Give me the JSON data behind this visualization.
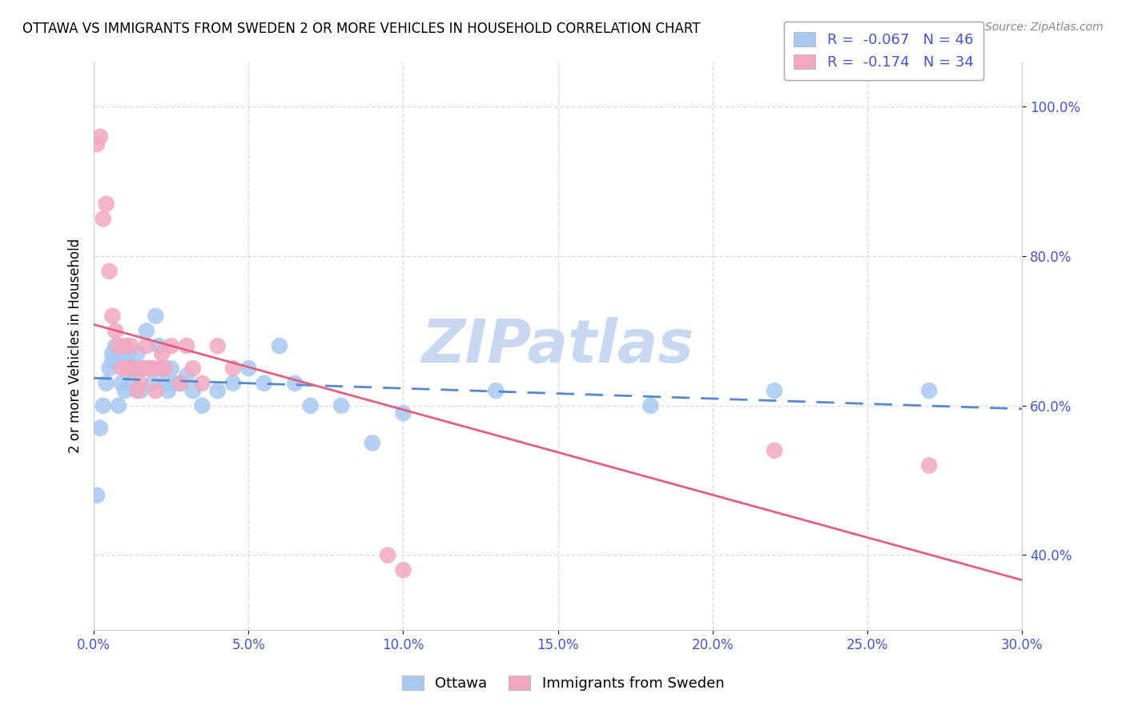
{
  "title": "OTTAWA VS IMMIGRANTS FROM SWEDEN 2 OR MORE VEHICLES IN HOUSEHOLD CORRELATION CHART",
  "source": "Source: ZipAtlas.com",
  "ylabel": "2 or more Vehicles in Household",
  "xlim": [
    0.0,
    0.3
  ],
  "ylim": [
    0.3,
    1.06
  ],
  "xticks": [
    0.0,
    0.05,
    0.1,
    0.15,
    0.2,
    0.25,
    0.3
  ],
  "yticks": [
    0.4,
    0.6,
    0.8,
    1.0
  ],
  "ytick_labels": [
    "40.0%",
    "60.0%",
    "80.0%",
    "100.0%"
  ],
  "xtick_labels": [
    "0.0%",
    "5.0%",
    "10.0%",
    "15.0%",
    "20.0%",
    "25.0%",
    "30.0%"
  ],
  "legend_R1": "R =  -0.067",
  "legend_N1": "N = 46",
  "legend_R2": "R =  -0.174",
  "legend_N2": "N = 34",
  "color_ottawa": "#a8c8f0",
  "color_sweden": "#f0a8c0",
  "color_line_ottawa": "#5588cc",
  "color_line_sweden": "#e06080",
  "color_grid": "#dddddd",
  "color_axis_text": "#4455cc",
  "watermark_text": "ZIPatlas",
  "watermark_color": "#c8d8f0",
  "ottawa_x": [
    0.001,
    0.002,
    0.003,
    0.004,
    0.005,
    0.006,
    0.006,
    0.007,
    0.008,
    0.009,
    0.01,
    0.01,
    0.011,
    0.012,
    0.013,
    0.014,
    0.015,
    0.016,
    0.017,
    0.018,
    0.019,
    0.02,
    0.021,
    0.022,
    0.023,
    0.024,
    0.025,
    0.026,
    0.028,
    0.03,
    0.032,
    0.035,
    0.04,
    0.045,
    0.05,
    0.055,
    0.06,
    0.065,
    0.07,
    0.08,
    0.09,
    0.1,
    0.13,
    0.18,
    0.22,
    0.27
  ],
  "ottawa_y": [
    0.48,
    0.57,
    0.6,
    0.63,
    0.65,
    0.66,
    0.67,
    0.68,
    0.6,
    0.63,
    0.62,
    0.66,
    0.67,
    0.63,
    0.65,
    0.67,
    0.62,
    0.65,
    0.7,
    0.65,
    0.63,
    0.72,
    0.68,
    0.65,
    0.63,
    0.62,
    0.65,
    0.63,
    0.63,
    0.64,
    0.62,
    0.6,
    0.62,
    0.63,
    0.65,
    0.63,
    0.68,
    0.63,
    0.6,
    0.6,
    0.55,
    0.59,
    0.62,
    0.6,
    0.62,
    0.62
  ],
  "sweden_x": [
    0.001,
    0.002,
    0.003,
    0.004,
    0.005,
    0.006,
    0.007,
    0.008,
    0.009,
    0.01,
    0.011,
    0.012,
    0.013,
    0.014,
    0.015,
    0.016,
    0.017,
    0.018,
    0.019,
    0.02,
    0.021,
    0.022,
    0.023,
    0.025,
    0.028,
    0.03,
    0.032,
    0.035,
    0.04,
    0.045,
    0.095,
    0.1,
    0.22,
    0.27
  ],
  "sweden_y": [
    0.95,
    0.96,
    0.85,
    0.87,
    0.78,
    0.72,
    0.7,
    0.68,
    0.65,
    0.68,
    0.65,
    0.68,
    0.65,
    0.62,
    0.63,
    0.65,
    0.68,
    0.65,
    0.65,
    0.62,
    0.65,
    0.67,
    0.65,
    0.68,
    0.63,
    0.68,
    0.65,
    0.63,
    0.68,
    0.65,
    0.4,
    0.38,
    0.54,
    0.52
  ]
}
